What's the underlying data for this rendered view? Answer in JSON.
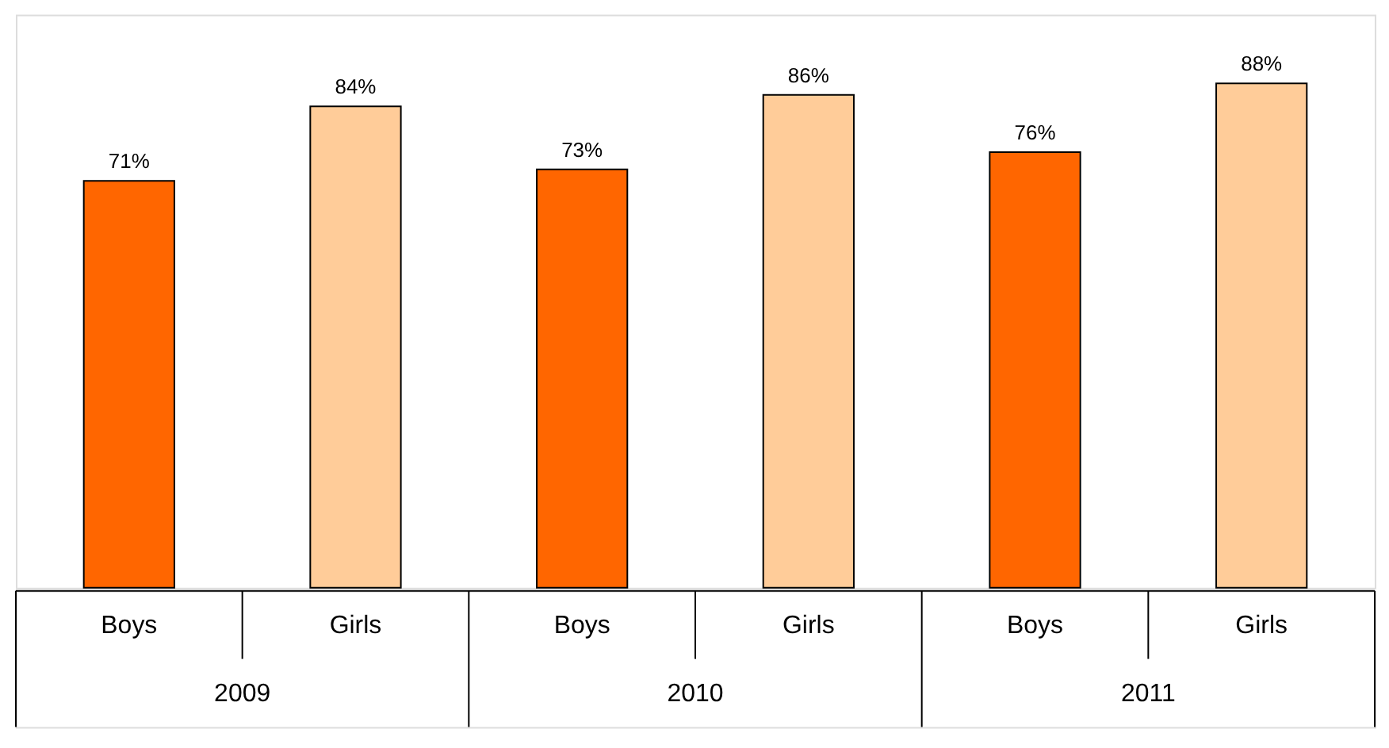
{
  "chart_data": {
    "type": "bar",
    "categories": [
      "2009",
      "2010",
      "2011"
    ],
    "series": [
      {
        "name": "Boys",
        "color": "#ff6600",
        "values": [
          71,
          73,
          76
        ],
        "value_labels": [
          "71%",
          "73%",
          "76%"
        ]
      },
      {
        "name": "Girls",
        "color": "#ffcc99",
        "values": [
          84,
          86,
          88
        ],
        "value_labels": [
          "84%",
          "86%",
          "88%"
        ]
      }
    ],
    "ylim": [
      0,
      100
    ],
    "legend": false
  }
}
